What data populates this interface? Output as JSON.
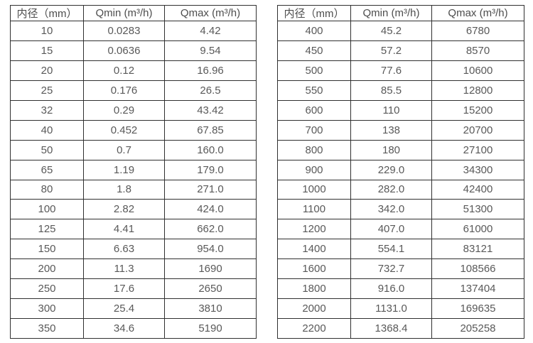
{
  "page": {
    "background": "#ffffff"
  },
  "colors": {
    "border": "#303030",
    "header_text": "#4d4d4d",
    "cell_text": "#595959"
  },
  "tables": [
    {
      "name": "flow-table-left",
      "headers": [
        "内径（mm）",
        "Qmin (m³/h)",
        "Qmax (m³/h)"
      ],
      "rows": [
        [
          "10",
          "0.0283",
          "4.42"
        ],
        [
          "15",
          "0.0636",
          "9.54"
        ],
        [
          "20",
          "0.12",
          "16.96"
        ],
        [
          "25",
          "0.176",
          "26.5"
        ],
        [
          "32",
          "0.29",
          "43.42"
        ],
        [
          "40",
          "0.452",
          "67.85"
        ],
        [
          "50",
          "0.7",
          "160.0"
        ],
        [
          "65",
          "1.19",
          "179.0"
        ],
        [
          "80",
          "1.8",
          "271.0"
        ],
        [
          "100",
          "2.82",
          "424.0"
        ],
        [
          "125",
          "4.41",
          "662.0"
        ],
        [
          "150",
          "6.63",
          "954.0"
        ],
        [
          "200",
          "11.3",
          "1690"
        ],
        [
          "250",
          "17.6",
          "2650"
        ],
        [
          "300",
          "25.4",
          "3810"
        ],
        [
          "350",
          "34.6",
          "5190"
        ]
      ]
    },
    {
      "name": "flow-table-right",
      "headers": [
        "内径（mm）",
        "Qmin (m³/h)",
        "Qmax (m³/h)"
      ],
      "rows": [
        [
          "400",
          "45.2",
          "6780"
        ],
        [
          "450",
          "57.2",
          "8570"
        ],
        [
          "500",
          "77.6",
          "10600"
        ],
        [
          "550",
          "85.5",
          "12800"
        ],
        [
          "600",
          "110",
          "15200"
        ],
        [
          "700",
          "138",
          "20700"
        ],
        [
          "800",
          "180",
          "27100"
        ],
        [
          "900",
          "229.0",
          "34300"
        ],
        [
          "1000",
          "282.0",
          "42400"
        ],
        [
          "1100",
          "342.0",
          "51300"
        ],
        [
          "1200",
          "407.0",
          "61000"
        ],
        [
          "1400",
          "554.1",
          "83121"
        ],
        [
          "1600",
          "732.7",
          "108566"
        ],
        [
          "1800",
          "916.0",
          "137404"
        ],
        [
          "2000",
          "1131.0",
          "169635"
        ],
        [
          "2200",
          "1368.4",
          "205258"
        ]
      ]
    }
  ]
}
